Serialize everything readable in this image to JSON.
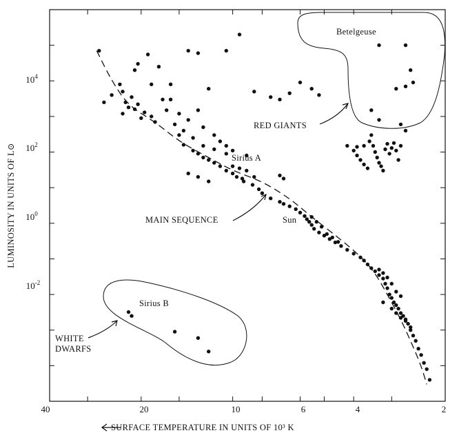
{
  "chart_data": {
    "type": "scatter",
    "title": "",
    "xlabel": "SURFACE TEMPERATURE IN UNITS OF 10³ K",
    "ylabel": "LUMINOSITY IN UNITS OF L⊙",
    "x_scale": "log",
    "x_reversed": true,
    "xlim": [
      40,
      2
    ],
    "y_scale": "log",
    "ylim": [
      1e-05,
      1000000
    ],
    "x_tick_labels": [
      "40",
      "20",
      "10",
      "6",
      "4",
      "2"
    ],
    "y_tick_labels": [
      {
        "base": "10",
        "exp": "4"
      },
      {
        "base": "10",
        "exp": "2"
      },
      {
        "base": "10",
        "exp": "0"
      },
      {
        "base": "10",
        "exp": "-2"
      }
    ],
    "grid": false,
    "series": [
      {
        "points": [
          [
            27.5,
            70000
          ],
          [
            26.5,
            2500
          ],
          [
            25,
            4000
          ],
          [
            23.5,
            8000
          ],
          [
            23,
            5000
          ],
          [
            22.5,
            2500
          ],
          [
            22,
            1800
          ],
          [
            21,
            1600
          ],
          [
            23,
            1200
          ],
          [
            21.5,
            3500
          ],
          [
            20.5,
            2200
          ],
          [
            20,
            900
          ],
          [
            19.5,
            1300
          ],
          [
            18.5,
            1000
          ],
          [
            18,
            700
          ],
          [
            21,
            20000
          ],
          [
            19,
            55000
          ],
          [
            17.5,
            25000
          ],
          [
            17,
            3000
          ],
          [
            16.5,
            1500
          ],
          [
            16,
            8000
          ],
          [
            15.5,
            600
          ],
          [
            15,
            300
          ],
          [
            14.5,
            160
          ],
          [
            13.5,
            110
          ],
          [
            13,
            90
          ],
          [
            12.5,
            70
          ],
          [
            12,
            60
          ],
          [
            11.5,
            50
          ],
          [
            11,
            40
          ],
          [
            10.5,
            30
          ],
          [
            10.5,
            90
          ],
          [
            10,
            25
          ],
          [
            9.7,
            20
          ],
          [
            9.3,
            18
          ],
          [
            9,
            30
          ],
          [
            9.2,
            15
          ],
          [
            8.6,
            12
          ],
          [
            8.2,
            9
          ],
          [
            8,
            7
          ],
          [
            7.5,
            5
          ],
          [
            7,
            4
          ],
          [
            6.8,
            3.5
          ],
          [
            6.5,
            3
          ],
          [
            6.2,
            2.5
          ],
          [
            6,
            2
          ],
          [
            5.8,
            1.6
          ],
          [
            5.7,
            1.3
          ],
          [
            5.6,
            1.1
          ],
          [
            5.5,
            0.9
          ],
          [
            5.4,
            0.7
          ],
          [
            5.2,
            0.55
          ],
          [
            5,
            0.45
          ],
          [
            4.8,
            0.36
          ],
          [
            4.6,
            0.29
          ],
          [
            4.4,
            0.23
          ],
          [
            4.2,
            0.18
          ],
          [
            4,
            0.14
          ],
          [
            3.8,
            0.11
          ],
          [
            3.7,
            0.09
          ],
          [
            3.6,
            0.07
          ],
          [
            3.5,
            0.055
          ],
          [
            3.4,
            0.045
          ],
          [
            3.3,
            0.035
          ],
          [
            3.2,
            0.028
          ],
          [
            3.15,
            0.02
          ],
          [
            3.1,
            0.015
          ],
          [
            3.05,
            0.01
          ],
          [
            3.0,
            0.008
          ],
          [
            2.95,
            0.006
          ],
          [
            2.9,
            0.005
          ],
          [
            2.85,
            0.004
          ],
          [
            2.8,
            0.003
          ],
          [
            2.75,
            0.0025
          ],
          [
            2.7,
            0.002
          ],
          [
            2.65,
            0.0015
          ],
          [
            2.6,
            0.001
          ],
          [
            2.55,
            0.0007
          ],
          [
            2.5,
            0.0005
          ],
          [
            2.45,
            0.0003
          ],
          [
            2.4,
            0.0002
          ],
          [
            2.35,
            0.00012
          ],
          [
            2.3,
            8e-05
          ],
          [
            2.25,
            4e-05
          ],
          [
            14,
            25
          ],
          [
            13,
            20
          ],
          [
            12,
            15
          ],
          [
            14.5,
            400
          ],
          [
            13.5,
            250
          ],
          [
            12.5,
            150
          ],
          [
            11.5,
            120
          ],
          [
            10,
            40
          ],
          [
            9.5,
            35
          ],
          [
            8.5,
            20
          ],
          [
            7,
            22
          ],
          [
            6.8,
            18
          ],
          [
            5.5,
            1.5
          ],
          [
            5.3,
            1.1
          ],
          [
            5.1,
            0.8
          ],
          [
            4.9,
            0.5
          ],
          [
            4.7,
            0.4
          ],
          [
            4.5,
            0.3
          ],
          [
            3.3,
            0.05
          ],
          [
            3.2,
            0.04
          ],
          [
            3.1,
            0.03
          ],
          [
            3.0,
            0.02
          ],
          [
            2.9,
            0.012
          ],
          [
            2.8,
            0.009
          ],
          [
            3.2,
            0.006
          ],
          [
            3.0,
            0.004
          ],
          [
            2.9,
            0.003
          ],
          [
            2.8,
            0.0022
          ],
          [
            2.7,
            0.0018
          ],
          [
            2.6,
            0.0012
          ],
          [
            13,
            60000
          ],
          [
            14,
            70000
          ],
          [
            12,
            6000
          ],
          [
            10.5,
            70000
          ],
          [
            9.5,
            200000
          ],
          [
            8.5,
            5000
          ],
          [
            7.5,
            3500
          ],
          [
            7,
            3000
          ],
          [
            6.5,
            4500
          ],
          [
            6,
            9000
          ],
          [
            5.5,
            6000
          ],
          [
            5.2,
            4000
          ],
          [
            20.5,
            30000
          ],
          [
            18.5,
            8000
          ],
          [
            16,
            3000
          ],
          [
            15,
            1200
          ],
          [
            14,
            800
          ],
          [
            13,
            1500
          ],
          [
            12.5,
            500
          ],
          [
            11.5,
            300
          ],
          [
            11,
            200
          ],
          [
            10.5,
            150
          ],
          [
            10,
            110
          ],
          [
            9,
            80
          ],
          [
            3.3,
            100000
          ],
          [
            2.7,
            100000
          ],
          [
            3.5,
            1500
          ],
          [
            3.3,
            800
          ],
          [
            2.9,
            6000
          ],
          [
            2.7,
            7000
          ],
          [
            2.6,
            20000
          ],
          [
            2.55,
            9000
          ],
          [
            2.8,
            600
          ],
          [
            2.7,
            400
          ],
          [
            4.2,
            150
          ],
          [
            4,
            110
          ],
          [
            3.9,
            80
          ],
          [
            3.8,
            60
          ],
          [
            3.7,
            45
          ],
          [
            3.6,
            35
          ],
          [
            3.55,
            200
          ],
          [
            3.5,
            300
          ],
          [
            3.45,
            150
          ],
          [
            3.4,
            100
          ],
          [
            3.35,
            70
          ],
          [
            3.3,
            50
          ],
          [
            3.25,
            40
          ],
          [
            3.2,
            30
          ],
          [
            3.15,
            120
          ],
          [
            3.1,
            170
          ],
          [
            3.05,
            90
          ],
          [
            3.0,
            130
          ],
          [
            2.95,
            180
          ],
          [
            2.9,
            110
          ],
          [
            2.85,
            60
          ],
          [
            2.8,
            150
          ],
          [
            3.7,
            150
          ],
          [
            3.9,
            140
          ],
          [
            22,
            0.0032
          ],
          [
            21.5,
            0.0025
          ],
          [
            15.5,
            0.0009
          ],
          [
            13,
            0.0006
          ],
          [
            12,
            0.00025
          ]
        ]
      }
    ],
    "main_sequence_curve": [
      [
        28,
        70000
      ],
      [
        25,
        10000
      ],
      [
        22,
        2000
      ],
      [
        18,
        700
      ],
      [
        15,
        200
      ],
      [
        12,
        70
      ],
      [
        10,
        30
      ],
      [
        8,
        15
      ],
      [
        6.5,
        5
      ],
      [
        5.5,
        1.5
      ],
      [
        4.5,
        0.4
      ],
      [
        3.8,
        0.12
      ],
      [
        3.4,
        0.04
      ],
      [
        3.1,
        0.01
      ],
      [
        2.8,
        0.002
      ],
      [
        2.6,
        0.0005
      ],
      [
        2.4,
        0.0001
      ],
      [
        2.3,
        3e-05
      ]
    ],
    "annotations": {
      "betelgeuse": "Betelgeuse",
      "red_giants": "RED GIANTS",
      "sirius_a": "Sirius A",
      "main_sequence": "MAIN SEQUENCE",
      "sun": "Sun",
      "sirius_b": "Sirius B",
      "white_dwarfs_line1": "WHITE",
      "white_dwarfs_line2": "DWARFS"
    }
  }
}
